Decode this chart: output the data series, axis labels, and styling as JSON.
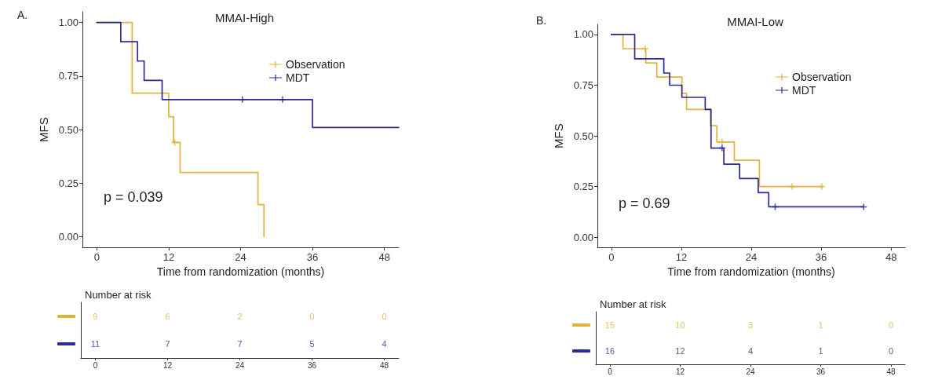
{
  "chart_data": [
    {
      "type": "step",
      "title": "MMAI-High",
      "xlabel": "Time from randomization (months)",
      "ylabel": "MFS",
      "annotations": [
        "A.",
        "p = 0.039"
      ],
      "xlim": [
        -2.4,
        50.4
      ],
      "xticks": [
        0,
        12,
        24,
        36,
        48
      ],
      "ylim": [
        -0.05,
        1.05
      ],
      "yticks": [
        {
          "value": 0,
          "label": "0.00"
        },
        {
          "value": 0.25,
          "label": "0.25"
        },
        {
          "value": 0.5,
          "label": "0.50"
        },
        {
          "value": 0.75,
          "label": "0.75"
        },
        {
          "value": 1,
          "label": "1.00"
        }
      ],
      "legend": "top right",
      "series": [
        {
          "name": "Observation",
          "color": "#e3b23c",
          "x": [
            0,
            5.9,
            12,
            12.8,
            13.9,
            26.9,
            27.9
          ],
          "values": [
            1,
            0.67,
            0.56,
            0.44,
            0.3,
            0.15,
            0
          ]
        },
        {
          "name": "MDT",
          "color": "#2b2a96",
          "x": [
            0,
            4,
            6.8,
            7.9,
            10.9,
            36,
            50.4
          ],
          "values": [
            1,
            0.91,
            0.82,
            0.73,
            0.64,
            0.51,
            0.51
          ]
        },
        {
          "type": "scatter",
          "marker": "cross",
          "color": "#e3b23c",
          "x": [
            13
          ],
          "values": [
            0.44
          ]
        },
        {
          "type": "scatter",
          "marker": "cross",
          "color": "#2b2a96",
          "x": [
            24.3,
            31
          ],
          "values": [
            0.64,
            0.64
          ]
        }
      ]
    },
    {
      "type": "step",
      "title": "MMAI-Low",
      "xlabel": "Time from randomization (months)",
      "ylabel": "MFS",
      "annotations": [
        "B.",
        "p = 0.69"
      ],
      "xlim": [
        -2.4,
        50.4
      ],
      "xticks": [
        0,
        12,
        24,
        36,
        48
      ],
      "ylim": [
        -0.05,
        1.05
      ],
      "yticks": [
        {
          "value": 0,
          "label": "0.00"
        },
        {
          "value": 0.25,
          "label": "0.25"
        },
        {
          "value": 0.5,
          "label": "0.50"
        },
        {
          "value": 0.75,
          "label": "0.75"
        },
        {
          "value": 1,
          "label": "1.00"
        }
      ],
      "legend": "top right",
      "series": [
        {
          "name": "Observation",
          "color": "#e3b23c",
          "x": [
            0,
            2,
            5.9,
            7.8,
            12.1,
            12.9,
            17,
            18.1,
            21.1,
            25.4,
            36.1
          ],
          "values": [
            1,
            0.93,
            0.86,
            0.79,
            0.71,
            0.63,
            0.55,
            0.47,
            0.38,
            0.25,
            0.25
          ]
        },
        {
          "name": "MDT",
          "color": "#2b2a96",
          "x": [
            0,
            4,
            9,
            10,
            12.1,
            16.1,
            17.1,
            19.3,
            22,
            25.2,
            27,
            43.3
          ],
          "values": [
            1,
            0.88,
            0.81,
            0.75,
            0.69,
            0.63,
            0.44,
            0.36,
            0.29,
            0.22,
            0.15,
            0.15
          ]
        },
        {
          "type": "scatter",
          "marker": "cross",
          "color": "#e3b23c",
          "x": [
            5.8,
            19,
            31,
            36.1
          ],
          "values": [
            0.93,
            0.47,
            0.25,
            0.25
          ]
        },
        {
          "type": "scatter",
          "marker": "cross",
          "color": "#2b2a96",
          "x": [
            19,
            28.1,
            43.3
          ],
          "values": [
            0.44,
            0.15,
            0.15
          ]
        }
      ]
    },
    {
      "type": "heatmap",
      "title": "Number at risk",
      "x": [
        0,
        12,
        24,
        36,
        48
      ],
      "xlim": [
        -2.4,
        50.4
      ],
      "xticks": [
        0,
        12,
        24,
        36,
        48
      ],
      "y_categories": [
        null,
        null
      ],
      "data_labels": true,
      "cells": [
        [
          9,
          6,
          2,
          0,
          0
        ],
        [
          11,
          7,
          7,
          5,
          4
        ]
      ]
    },
    {
      "type": "heatmap",
      "title": "Number at risk",
      "x": [
        0,
        12,
        24,
        36,
        48
      ],
      "xlim": [
        -2.4,
        50.4
      ],
      "xticks": [
        0,
        12,
        24,
        36,
        48
      ],
      "y_categories": [
        null,
        null
      ],
      "data_labels": true,
      "cells": [
        [
          15,
          10,
          3,
          1,
          0
        ],
        [
          16,
          12,
          4,
          1,
          0
        ]
      ]
    }
  ]
}
